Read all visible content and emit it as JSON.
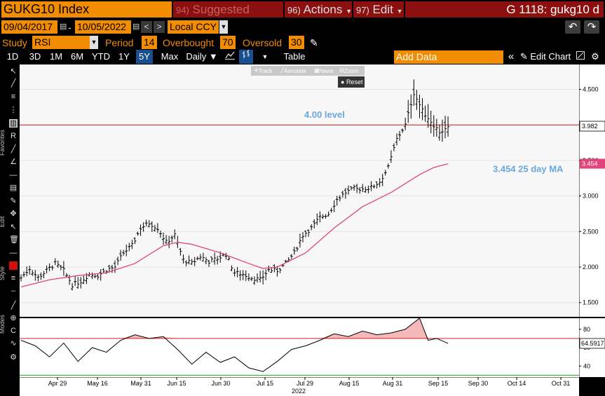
{
  "header": {
    "ticker": "GUKG10 Index",
    "suggested_num": "94)",
    "suggested_label": "Suggested Charts",
    "actions_num": "96)",
    "actions_label": "Actions",
    "edit_num": "97)",
    "edit_label": "Edit",
    "chart_title": "G 1118: gukg10 d"
  },
  "daterange": {
    "start": "09/04/2017",
    "dash": "-",
    "end": "10/05/2022",
    "currency": "Local CCY"
  },
  "study": {
    "study_label": "Study",
    "study_value": "RSI",
    "period_label": "Period",
    "period_value": "14",
    "overbought_label": "Overbought",
    "overbought_value": "70",
    "oversold_label": "Oversold",
    "oversold_value": "30"
  },
  "toolbar": {
    "periods": [
      "1D",
      "3D",
      "1M",
      "6M",
      "YTD",
      "1Y",
      "5Y",
      "Max"
    ],
    "selected_period": "5Y",
    "frequency": "Daily ▼",
    "table_label": "Table",
    "add_data_placeholder": "Add Data",
    "edit_chart_label": "Edit Chart"
  },
  "chart_tools": {
    "track": "Track",
    "annotate": "Annotate",
    "news": "News",
    "zoom": "Zoom",
    "reset": "Reset"
  },
  "side_labels": {
    "favorites": "Favorites",
    "edit": "Edit",
    "style": "Style",
    "modes": "Modes"
  },
  "annotations": {
    "level_text": "4.00 level",
    "ma_text": "3.454 25 day MA",
    "last_price_tag": "3.982",
    "ma_tag": "3.454",
    "rsi_tag": "64.5917"
  },
  "colors": {
    "price_bars": "#000000",
    "moving_average": "#e0457b",
    "level_line": "#d02020",
    "annotation_text": "#6aa7dc",
    "rsi_line": "#000000",
    "overbought_line": "#d02020",
    "oversold_line": "#20a020",
    "rsi_fill_over": "#f4a7a7",
    "bloomberg_orange": "#f28c00"
  },
  "chart_data": [
    {
      "type": "ohlc",
      "title": "",
      "x_ticks": [
        "Apr 29",
        "May 16",
        "May 31",
        "Jun 15",
        "Jun 30",
        "Jul 15",
        "Jul 29",
        "Aug 15",
        "Aug 31",
        "Sep 15",
        "Sep 30",
        "Oct 14",
        "Oct 31"
      ],
      "x_year_label": "2022",
      "y_ticks": [
        1.5,
        2.0,
        2.5,
        3.0,
        3.5,
        4.0,
        4.5
      ],
      "y_tick_labels": [
        "1.500",
        "2.000",
        "2.500",
        "3.000",
        "3.500",
        "4.000",
        "4.500"
      ],
      "ylim": [
        1.3,
        4.85
      ],
      "series": [
        {
          "name": "GUKG10 Index",
          "close_x": [
            0,
            3,
            6,
            9,
            12,
            15,
            18,
            21,
            24,
            27,
            30,
            33,
            36,
            39,
            42,
            45,
            48,
            51,
            54,
            57,
            60,
            63,
            66,
            69,
            72,
            75,
            78,
            81,
            84,
            87,
            90,
            93,
            96,
            99,
            102,
            105,
            108,
            111,
            114,
            117,
            120,
            123,
            126,
            129,
            132,
            135,
            138,
            141,
            144,
            147,
            150,
            153,
            156,
            159,
            162,
            165
          ],
          "close": [
            1.85,
            1.98,
            1.85,
            1.95,
            2.05,
            1.95,
            1.75,
            1.8,
            1.9,
            1.88,
            1.96,
            2.0,
            2.2,
            2.3,
            2.55,
            2.62,
            2.55,
            2.35,
            2.45,
            2.1,
            2.05,
            2.15,
            2.08,
            2.12,
            2.18,
            1.92,
            1.9,
            1.85,
            1.82,
            1.96,
            1.95,
            2.05,
            2.2,
            2.45,
            2.55,
            2.7,
            2.75,
            2.95,
            3.05,
            3.1,
            3.1,
            3.12,
            3.2,
            3.4,
            3.8,
            4.0,
            4.45,
            4.2,
            4.05,
            3.9,
            3.95,
            3.98,
            3.98,
            3.98,
            3.98,
            3.98
          ]
        },
        {
          "name": "25 day MA",
          "close_x": [
            0,
            10,
            20,
            30,
            40,
            50,
            55,
            60,
            70,
            80,
            85,
            90,
            100,
            110,
            120,
            130,
            140,
            145,
            150
          ],
          "close": [
            1.72,
            1.82,
            1.88,
            1.92,
            2.05,
            2.3,
            2.35,
            2.32,
            2.2,
            2.05,
            1.98,
            2.0,
            2.2,
            2.55,
            2.85,
            3.05,
            3.3,
            3.4,
            3.454
          ]
        }
      ],
      "reference_lines": [
        {
          "label": "4.00 level",
          "value": 4.0
        }
      ]
    },
    {
      "type": "line",
      "title": "",
      "ylabel": "",
      "y_ticks": [
        40,
        60,
        80
      ],
      "ylim": [
        28,
        92
      ],
      "series": [
        {
          "name": "RSI",
          "x": [
            0,
            5,
            10,
            15,
            20,
            25,
            30,
            35,
            40,
            45,
            50,
            55,
            60,
            65,
            70,
            75,
            80,
            85,
            90,
            95,
            100,
            105,
            110,
            115,
            120,
            125,
            130,
            135,
            140,
            143,
            146,
            150
          ],
          "values": [
            68,
            62,
            50,
            65,
            45,
            60,
            55,
            68,
            74,
            70,
            72,
            58,
            42,
            55,
            44,
            50,
            38,
            34,
            45,
            58,
            62,
            68,
            75,
            72,
            78,
            74,
            76,
            80,
            92,
            68,
            70,
            64.5917
          ]
        }
      ],
      "reference_lines": [
        {
          "label": "Overbought",
          "value": 70
        },
        {
          "label": "Oversold",
          "value": 30
        }
      ]
    }
  ]
}
